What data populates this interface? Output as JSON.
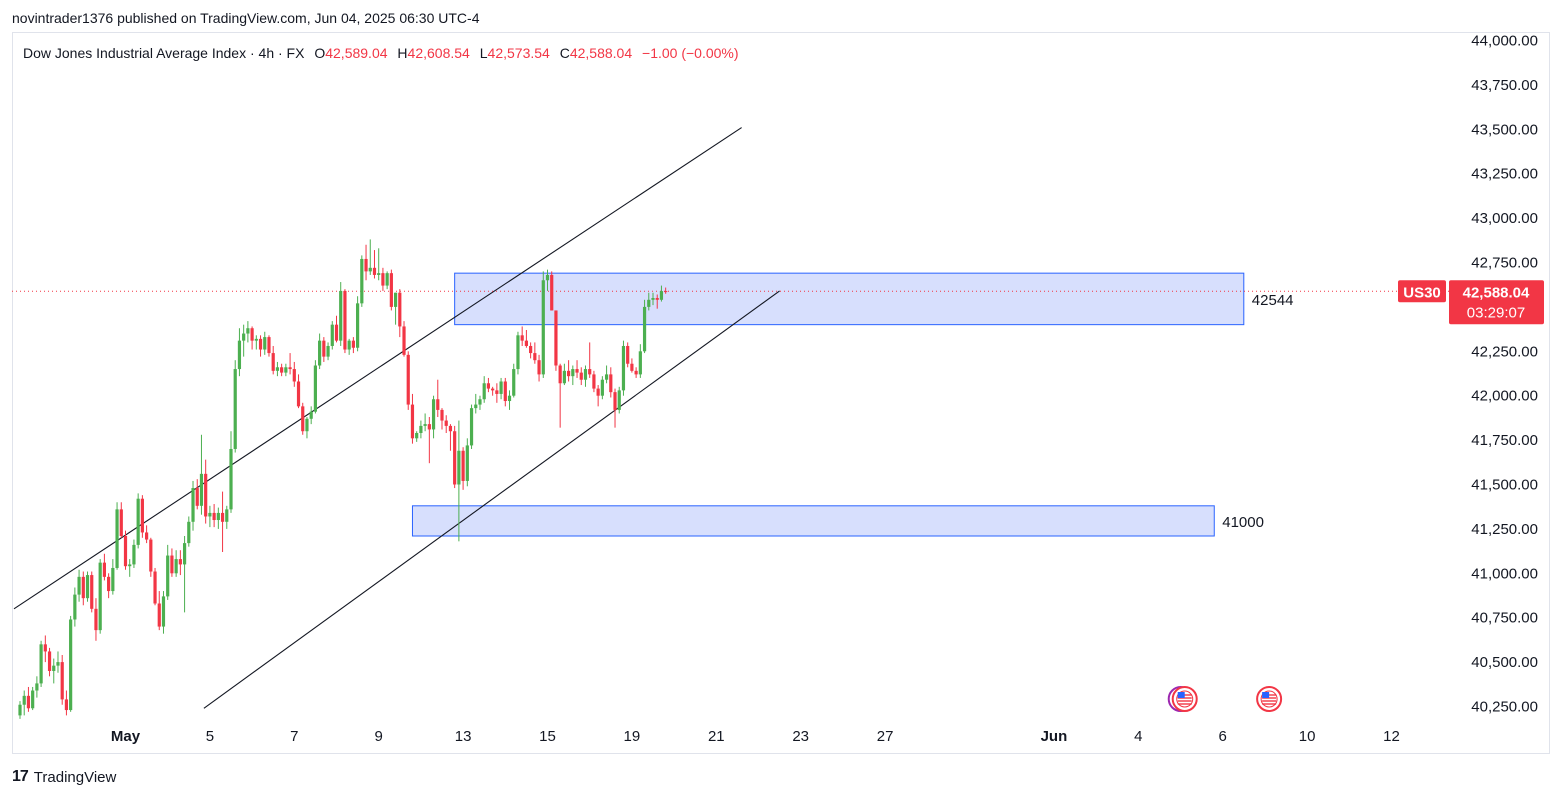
{
  "header": {
    "published_line": "novintrader1376 published on TradingView.com, Jun 04, 2025 06:30 UTC-4"
  },
  "legend": {
    "symbol": "Dow Jones Industrial Average Index · 4h · FX",
    "o_label": "O",
    "o_value": "42,589.04",
    "h_label": "H",
    "h_value": "42,608.54",
    "l_label": "L",
    "l_value": "42,573.54",
    "c_label": "C",
    "c_value": "42,588.04",
    "change": "−1.00 (−0.00%)"
  },
  "footer": {
    "brand": "TradingView",
    "brand_mark": "17"
  },
  "colors": {
    "up": "#26a69a",
    "up_fill": "#4caf50",
    "down": "#f23645",
    "zone_fill": "#d3dcfd",
    "zone_stroke": "#2962ff"
  },
  "chart_data": {
    "type": "candlestick",
    "symbol_tag": "US30",
    "last_price": "42,588.04",
    "countdown": "03:29:07",
    "ylim": [
      40150,
      44050
    ],
    "y_ticks": [
      "44,000.00",
      "43,750.00",
      "43,500.00",
      "43,250.00",
      "43,000.00",
      "42,750.00",
      "42,500.00",
      "42,250.00",
      "42,000.00",
      "41,750.00",
      "41,500.00",
      "41,250.00",
      "41,000.00",
      "40,750.00",
      "40,500.00",
      "40,250.00"
    ],
    "y_tick_values": [
      44000,
      43750,
      43500,
      43250,
      43000,
      42750,
      42500,
      42250,
      42000,
      41750,
      41500,
      41250,
      41000,
      40750,
      40500,
      40250
    ],
    "x_ticks": [
      "May",
      "5",
      "7",
      "9",
      "13",
      "15",
      "19",
      "21",
      "23",
      "27",
      "Jun",
      "4",
      "6",
      "10",
      "12"
    ],
    "x_tick_bars": [
      25,
      45,
      65,
      85,
      105,
      125,
      145,
      165,
      185,
      205,
      245,
      265,
      285,
      305,
      325
    ],
    "candles": [
      [
        40200,
        40280,
        40180,
        40260
      ],
      [
        40260,
        40340,
        40200,
        40310
      ],
      [
        40310,
        40360,
        40220,
        40240
      ],
      [
        40240,
        40360,
        40230,
        40340
      ],
      [
        40340,
        40420,
        40300,
        40380
      ],
      [
        40380,
        40620,
        40360,
        40600
      ],
      [
        40600,
        40650,
        40500,
        40560
      ],
      [
        40560,
        40580,
        40420,
        40450
      ],
      [
        40450,
        40520,
        40380,
        40480
      ],
      [
        40480,
        40560,
        40440,
        40500
      ],
      [
        40500,
        40540,
        40260,
        40290
      ],
      [
        40290,
        40340,
        40200,
        40230
      ],
      [
        40230,
        40760,
        40220,
        40740
      ],
      [
        40740,
        40920,
        40700,
        40880
      ],
      [
        40880,
        41020,
        40840,
        40980
      ],
      [
        40980,
        41010,
        40820,
        40860
      ],
      [
        40860,
        41010,
        40840,
        40990
      ],
      [
        40990,
        41010,
        40780,
        40800
      ],
      [
        40800,
        40860,
        40620,
        40680
      ],
      [
        40680,
        41080,
        40660,
        41060
      ],
      [
        41060,
        41110,
        40960,
        40980
      ],
      [
        40980,
        41000,
        40860,
        40900
      ],
      [
        40900,
        41080,
        40880,
        41030
      ],
      [
        41030,
        41400,
        41020,
        41360
      ],
      [
        41360,
        41400,
        41200,
        41210
      ],
      [
        41210,
        41240,
        41020,
        41040
      ],
      [
        41040,
        41080,
        40980,
        41050
      ],
      [
        41050,
        41190,
        41030,
        41160
      ],
      [
        41160,
        41450,
        41140,
        41420
      ],
      [
        41420,
        41440,
        41200,
        41230
      ],
      [
        41230,
        41270,
        41170,
        41190
      ],
      [
        41190,
        41200,
        40980,
        41010
      ],
      [
        41010,
        41030,
        40820,
        40830
      ],
      [
        40830,
        40900,
        40680,
        40700
      ],
      [
        40700,
        40900,
        40660,
        40870
      ],
      [
        40870,
        41160,
        40850,
        41100
      ],
      [
        41100,
        41140,
        40980,
        41000
      ],
      [
        41000,
        41130,
        40980,
        41080
      ],
      [
        41080,
        41130,
        40990,
        41050
      ],
      [
        41050,
        41210,
        40780,
        41170
      ],
      [
        41170,
        41320,
        41150,
        41290
      ],
      [
        41290,
        41520,
        41240,
        41480
      ],
      [
        41480,
        41530,
        41360,
        41380
      ],
      [
        41380,
        41780,
        41330,
        41560
      ],
      [
        41560,
        41640,
        41280,
        41320
      ],
      [
        41320,
        41380,
        41260,
        41340
      ],
      [
        41340,
        41390,
        41260,
        41300
      ],
      [
        41300,
        41370,
        41250,
        41340
      ],
      [
        41340,
        41460,
        41120,
        41290
      ],
      [
        41290,
        41380,
        41250,
        41360
      ],
      [
        41360,
        41800,
        41340,
        41700
      ],
      [
        41700,
        42200,
        41680,
        42150
      ],
      [
        42150,
        42380,
        42110,
        42310
      ],
      [
        42310,
        42400,
        42220,
        42350
      ],
      [
        42350,
        42420,
        42300,
        42380
      ],
      [
        42380,
        42390,
        42260,
        42310
      ],
      [
        42310,
        42340,
        42260,
        42320
      ],
      [
        42320,
        42340,
        42220,
        42260
      ],
      [
        42260,
        42360,
        42230,
        42330
      ],
      [
        42330,
        42340,
        42220,
        42240
      ],
      [
        42240,
        42280,
        42120,
        42140
      ],
      [
        42140,
        42190,
        42110,
        42160
      ],
      [
        42160,
        42180,
        42110,
        42130
      ],
      [
        42130,
        42180,
        42110,
        42160
      ],
      [
        42160,
        42240,
        42120,
        42150
      ],
      [
        42150,
        42190,
        42050,
        42080
      ],
      [
        42080,
        42120,
        41930,
        41940
      ],
      [
        41940,
        41960,
        41780,
        41800
      ],
      [
        41800,
        41880,
        41760,
        41870
      ],
      [
        41870,
        41940,
        41840,
        41910
      ],
      [
        41910,
        42200,
        41900,
        42170
      ],
      [
        42170,
        42350,
        42150,
        42310
      ],
      [
        42310,
        42330,
        42190,
        42220
      ],
      [
        42220,
        42300,
        42200,
        42280
      ],
      [
        42280,
        42420,
        42260,
        42400
      ],
      [
        42400,
        42450,
        42300,
        42310
      ],
      [
        42310,
        42640,
        42280,
        42590
      ],
      [
        42590,
        42600,
        42240,
        42260
      ],
      [
        42260,
        42320,
        42230,
        42310
      ],
      [
        42310,
        42330,
        42240,
        42270
      ],
      [
        42270,
        42560,
        42250,
        42520
      ],
      [
        42520,
        42790,
        42500,
        42770
      ],
      [
        42770,
        42850,
        42650,
        42700
      ],
      [
        42700,
        42880,
        42680,
        42720
      ],
      [
        42720,
        42820,
        42660,
        42680
      ],
      [
        42680,
        42830,
        42650,
        42690
      ],
      [
        42690,
        42720,
        42590,
        42620
      ],
      [
        42620,
        42700,
        42600,
        42690
      ],
      [
        42690,
        42710,
        42480,
        42500
      ],
      [
        42500,
        42580,
        42400,
        42580
      ],
      [
        42580,
        42600,
        42330,
        42390
      ],
      [
        42390,
        42420,
        42220,
        42230
      ],
      [
        42230,
        42250,
        41920,
        41950
      ],
      [
        41950,
        42010,
        41730,
        41760
      ],
      [
        41760,
        41800,
        41740,
        41790
      ],
      [
        41790,
        41860,
        41760,
        41830
      ],
      [
        41830,
        41900,
        41800,
        41840
      ],
      [
        41840,
        41880,
        41620,
        41810
      ],
      [
        41810,
        42000,
        41760,
        41980
      ],
      [
        41980,
        42090,
        41880,
        41920
      ],
      [
        41920,
        41930,
        41810,
        41860
      ],
      [
        41860,
        41890,
        41790,
        41830
      ],
      [
        41830,
        41840,
        41690,
        41800
      ],
      [
        41800,
        41830,
        41480,
        41500
      ],
      [
        41500,
        41860,
        41180,
        41690
      ],
      [
        41690,
        41710,
        41470,
        41520
      ],
      [
        41520,
        41760,
        41490,
        41720
      ],
      [
        41720,
        41950,
        41700,
        41930
      ],
      [
        41930,
        42010,
        41900,
        41950
      ],
      [
        41950,
        42000,
        41920,
        41980
      ],
      [
        41980,
        42110,
        41960,
        42070
      ],
      [
        42070,
        42100,
        42020,
        42040
      ],
      [
        42040,
        42050,
        42000,
        42030
      ],
      [
        42030,
        42070,
        41960,
        42010
      ],
      [
        42010,
        42100,
        41980,
        42080
      ],
      [
        42080,
        42100,
        41940,
        41970
      ],
      [
        41970,
        42030,
        41920,
        42000
      ],
      [
        42000,
        42180,
        41990,
        42150
      ],
      [
        42150,
        42360,
        42120,
        42340
      ],
      [
        42340,
        42390,
        42280,
        42310
      ],
      [
        42310,
        42370,
        42270,
        42280
      ],
      [
        42280,
        42300,
        42210,
        42240
      ],
      [
        42240,
        42300,
        42180,
        42200
      ],
      [
        42200,
        42230,
        42080,
        42120
      ],
      [
        42120,
        42700,
        42100,
        42650
      ],
      [
        42650,
        42710,
        42590,
        42680
      ],
      [
        42680,
        42700,
        42480,
        42480
      ],
      [
        42480,
        42480,
        42140,
        42170
      ],
      [
        42170,
        42180,
        41820,
        42070
      ],
      [
        42070,
        42180,
        42060,
        42140
      ],
      [
        42140,
        42200,
        42080,
        42110
      ],
      [
        42110,
        42170,
        42060,
        42150
      ],
      [
        42150,
        42200,
        42100,
        42130
      ],
      [
        42130,
        42160,
        42060,
        42090
      ],
      [
        42090,
        42170,
        42050,
        42150
      ],
      [
        42150,
        42300,
        42100,
        42120
      ],
      [
        42120,
        42140,
        42020,
        42040
      ],
      [
        42040,
        42060,
        41940,
        42000
      ],
      [
        42000,
        42110,
        41980,
        42090
      ],
      [
        42090,
        42170,
        42070,
        42120
      ],
      [
        42120,
        42160,
        41990,
        42020
      ],
      [
        42020,
        42040,
        41820,
        41920
      ],
      [
        41920,
        42050,
        41900,
        42030
      ],
      [
        42030,
        42310,
        42000,
        42280
      ],
      [
        42280,
        42300,
        42160,
        42180
      ],
      [
        42180,
        42210,
        42130,
        42140
      ],
      [
        42140,
        42160,
        42100,
        42120
      ],
      [
        42120,
        42290,
        42100,
        42250
      ],
      [
        42250,
        42540,
        42240,
        42500
      ],
      [
        42500,
        42580,
        42480,
        42540
      ],
      [
        42540,
        42580,
        42510,
        42550
      ],
      [
        42550,
        42570,
        42490,
        42540
      ],
      [
        42540,
        42620,
        42530,
        42589
      ],
      [
        42589,
        42609,
        42574,
        42588
      ]
    ],
    "channel_upper": [
      [
        0,
        40800
      ],
      [
        171,
        43510
      ]
    ],
    "channel_lower": [
      [
        45,
        40240
      ],
      [
        180,
        42590
      ]
    ],
    "zones": [
      {
        "label": "42544",
        "y_top": 42690,
        "y_bottom": 42400,
        "x_start": 103,
        "x_end": 290
      },
      {
        "label": "41000",
        "y_top": 41380,
        "y_bottom": 41210,
        "x_start": 93,
        "x_end": 283
      }
    ],
    "event_icons_at_bars": [
      276,
      296
    ]
  }
}
